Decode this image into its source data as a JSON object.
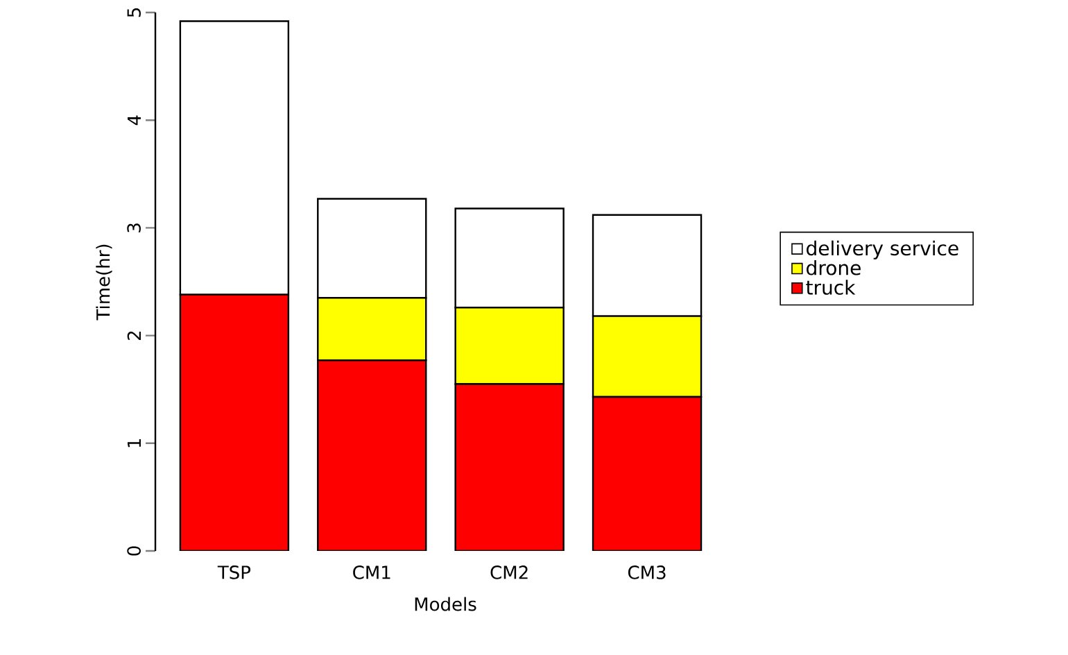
{
  "chart_data": {
    "type": "bar",
    "stacked": true,
    "xlabel": "Models",
    "ylabel": "Time(hr)",
    "categories": [
      "TSP",
      "CM1",
      "CM2",
      "CM3"
    ],
    "series": [
      {
        "name": "truck",
        "color": "#ff0000",
        "values": [
          2.38,
          1.77,
          1.55,
          1.43
        ]
      },
      {
        "name": "drone",
        "color": "#ffff00",
        "values": [
          0,
          0.58,
          0.71,
          0.75
        ]
      },
      {
        "name": "delivery service",
        "color": "#ffffff",
        "values": [
          2.54,
          0.92,
          0.92,
          0.94
        ]
      }
    ],
    "ylim": [
      0,
      5
    ],
    "yticks": [
      0,
      1,
      2,
      3,
      4,
      5
    ],
    "legend": "right"
  }
}
